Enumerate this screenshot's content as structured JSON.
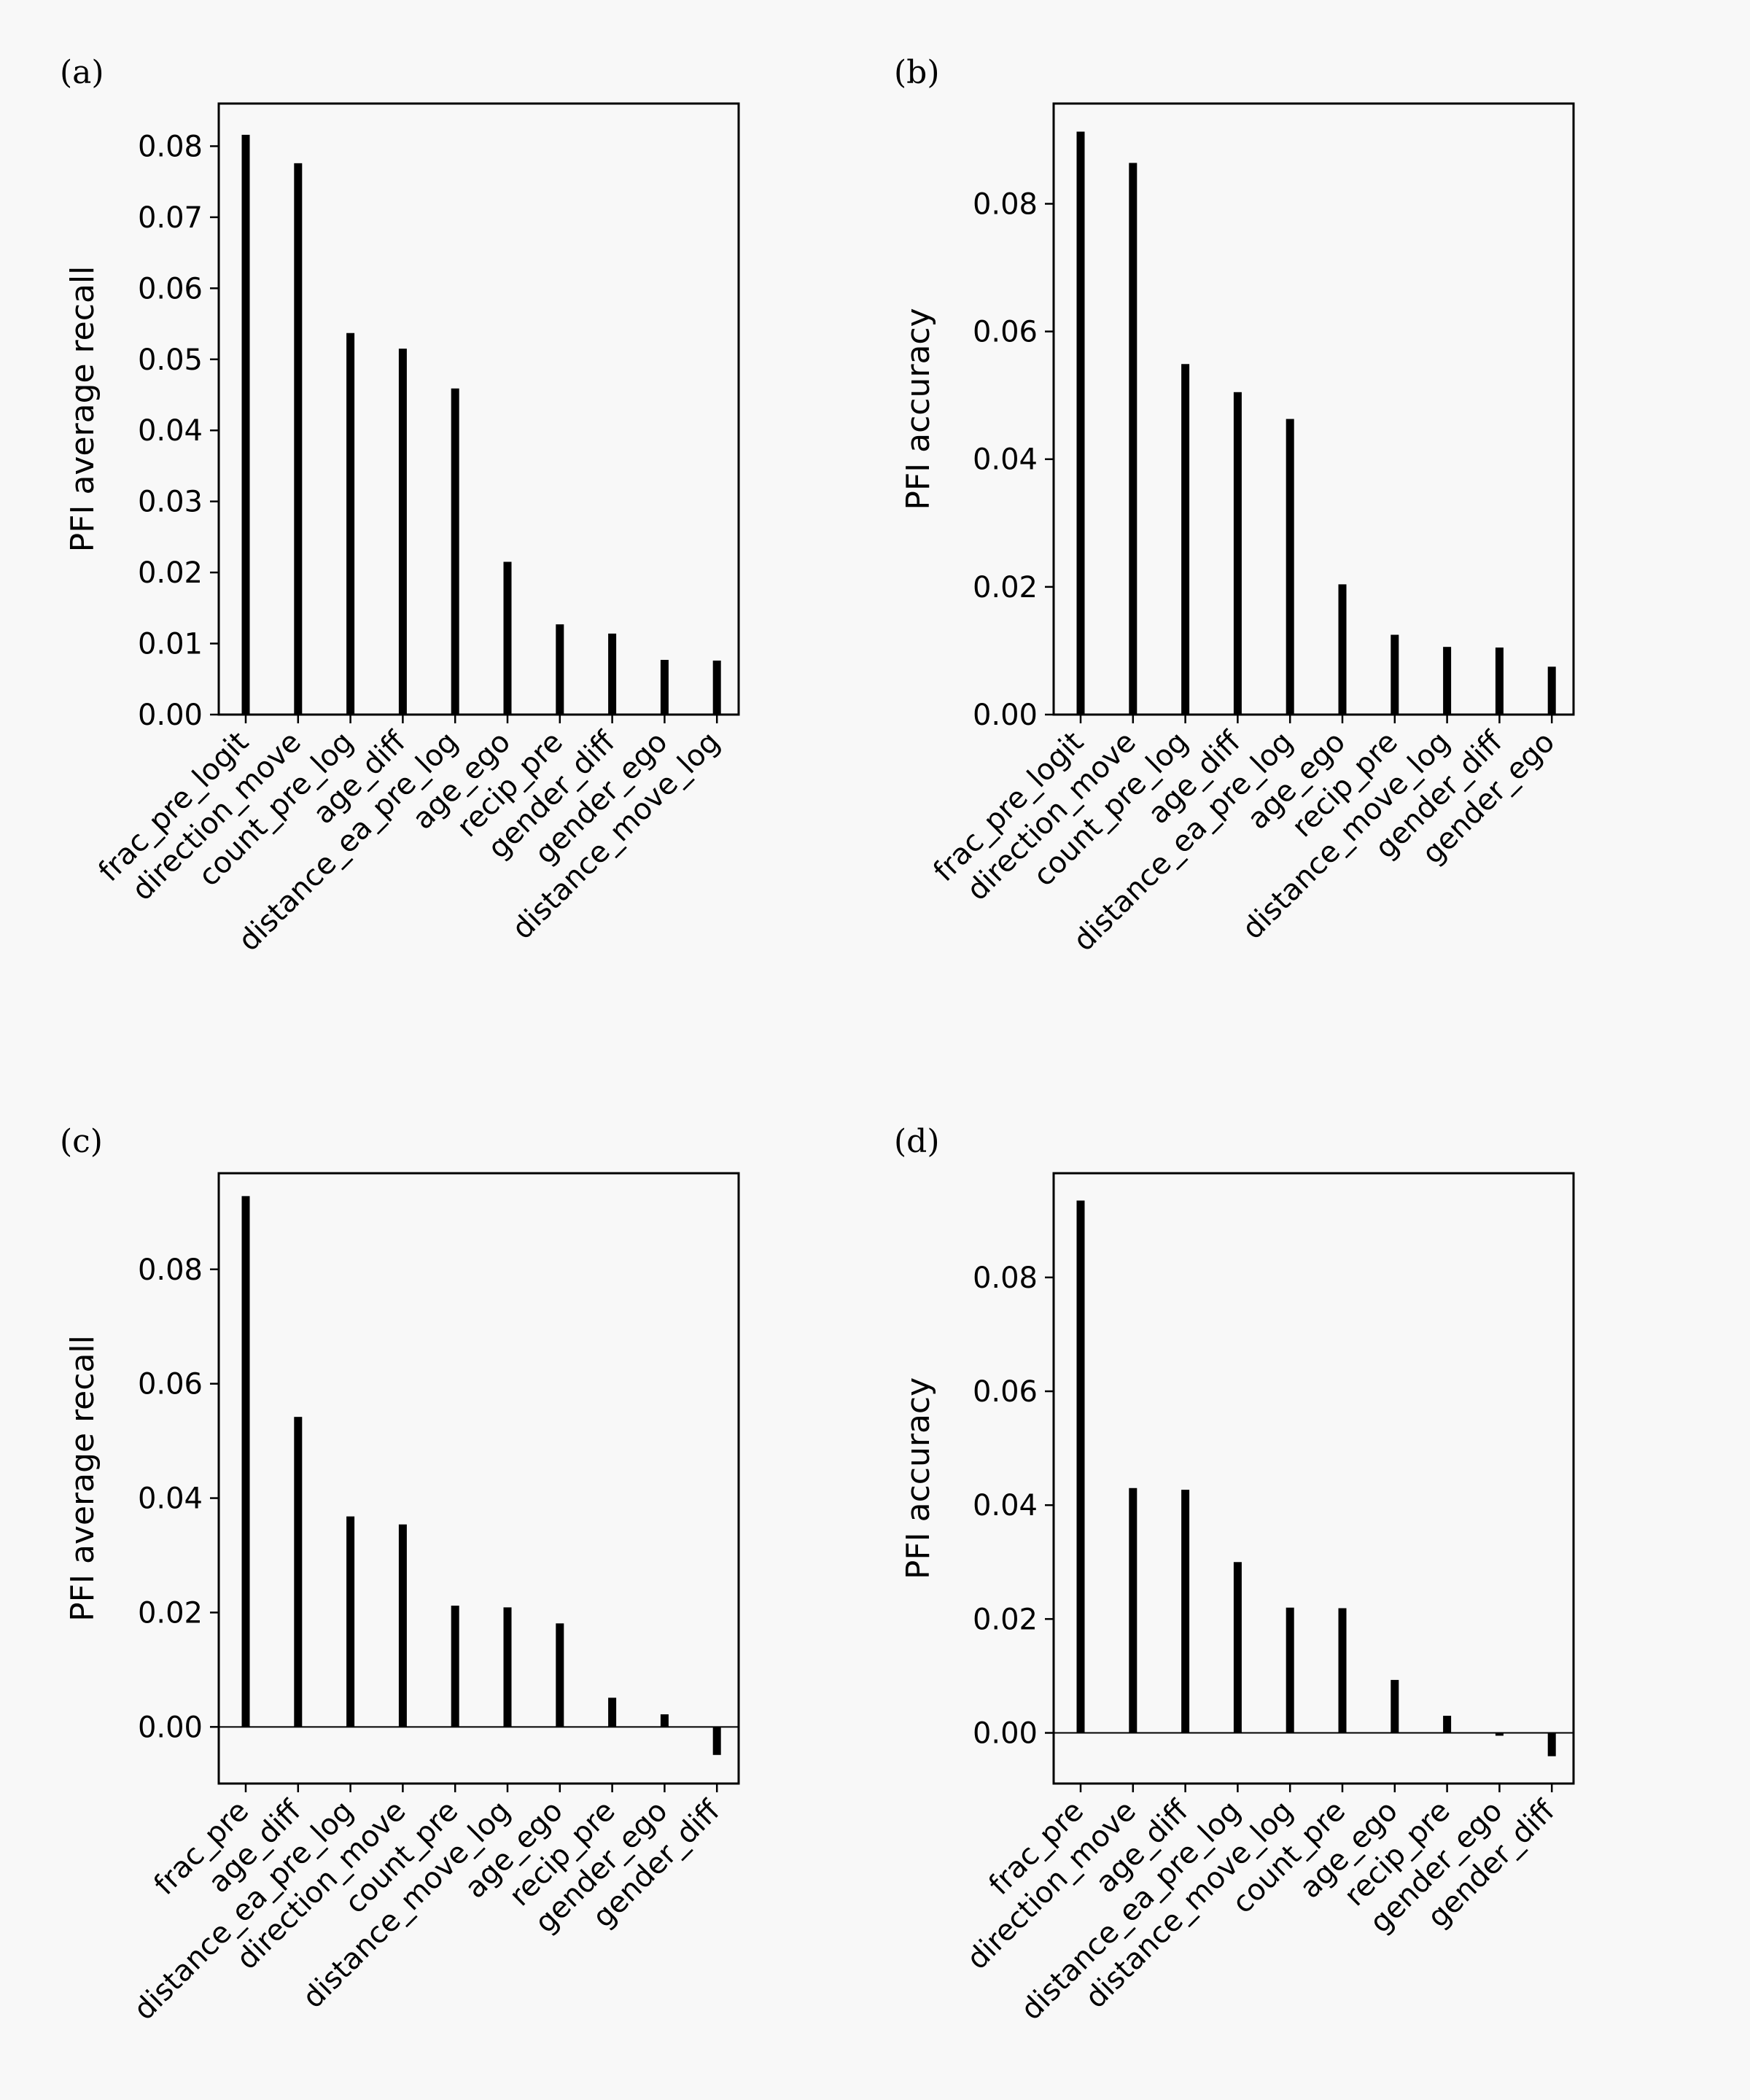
{
  "chart_data": [
    {
      "panel": "(a)",
      "type": "bar",
      "ylabel": "PFI average recall",
      "ylim": [
        0,
        0.086
      ],
      "yticks": [
        "0.00",
        "0.01",
        "0.02",
        "0.03",
        "0.04",
        "0.05",
        "0.06",
        "0.07",
        "0.08"
      ],
      "zero_line": false,
      "categories": [
        "frac_pre_logit",
        "direction_move",
        "count_pre_log",
        "age_diff",
        "distance_ea_pre_log",
        "age_ego",
        "recip_pre",
        "gender_diff",
        "gender_ego",
        "distance_move_log"
      ],
      "values": [
        0.0816,
        0.0776,
        0.0537,
        0.0515,
        0.0459,
        0.0215,
        0.0127,
        0.0114,
        0.0077,
        0.0076
      ]
    },
    {
      "panel": "(b)",
      "type": "bar",
      "ylabel": "PFI accuracy",
      "ylim": [
        0,
        0.0957
      ],
      "yticks": [
        "0.00",
        "0.02",
        "0.04",
        "0.06",
        "0.08"
      ],
      "zero_line": false,
      "categories": [
        "frac_pre_logit",
        "direction_move",
        "count_pre_log",
        "age_diff",
        "distance_ea_pre_log",
        "age_ego",
        "recip_pre",
        "distance_move_log",
        "gender_diff",
        "gender_ego"
      ],
      "values": [
        0.0913,
        0.0864,
        0.0549,
        0.0505,
        0.0463,
        0.0204,
        0.0125,
        0.0106,
        0.0105,
        0.0075
      ]
    },
    {
      "panel": "(c)",
      "type": "bar",
      "ylabel": "PFI average recall",
      "ylim": [
        -0.0099,
        0.0968
      ],
      "yticks": [
        "0.00",
        "0.02",
        "0.04",
        "0.06",
        "0.08"
      ],
      "zero_line": true,
      "categories": [
        "frac_pre",
        "age_diff",
        "distance_ea_pre_log",
        "direction_move",
        "count_pre",
        "distance_move_log",
        "age_ego",
        "recip_pre",
        "gender_ego",
        "gender_diff"
      ],
      "values": [
        0.0928,
        0.0542,
        0.0368,
        0.0354,
        0.0212,
        0.0209,
        0.0181,
        0.0051,
        0.0022,
        -0.0049
      ]
    },
    {
      "panel": "(d)",
      "type": "bar",
      "ylabel": "PFI accuracy",
      "ylim": [
        -0.0089,
        0.0983
      ],
      "yticks": [
        "0.00",
        "0.02",
        "0.04",
        "0.06",
        "0.08"
      ],
      "zero_line": true,
      "categories": [
        "frac_pre",
        "direction_move",
        "age_diff",
        "distance_ea_pre_log",
        "distance_move_log",
        "count_pre",
        "age_ego",
        "recip_pre",
        "gender_ego",
        "gender_diff"
      ],
      "values": [
        0.0935,
        0.043,
        0.0427,
        0.03,
        0.022,
        0.0219,
        0.0093,
        0.003,
        -0.0005,
        -0.0041
      ]
    }
  ]
}
